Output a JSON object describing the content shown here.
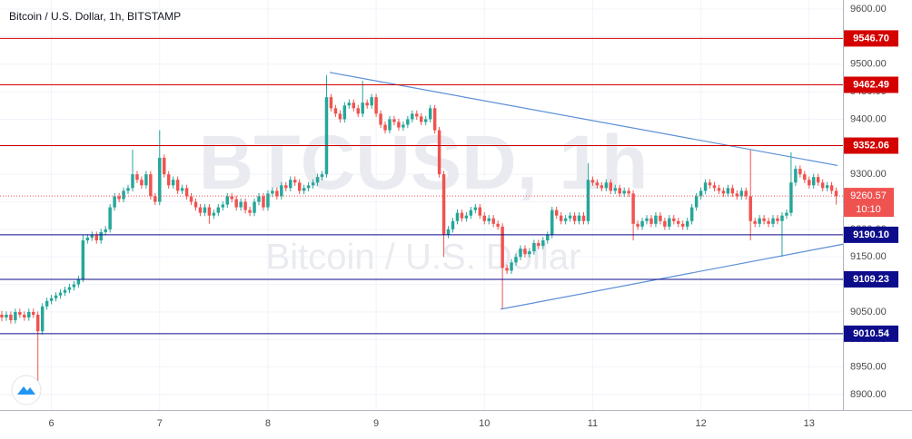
{
  "chart_data": {
    "type": "candlestick",
    "title": "Bitcoin / U.S. Dollar, 1h, BITSTAMP",
    "watermark": "BTCUSD, 1h",
    "watermark_subtitle": "Bitcoin / U.S. Dollar",
    "countdown": "10:10",
    "up_color": "#26a69a",
    "down_color": "#ef5350",
    "grid": true,
    "xlim": [
      -0.4,
      186.5
    ],
    "ylim": [
      8872,
      9616.5
    ],
    "xticks": [
      {
        "value": 11,
        "label": "6"
      },
      {
        "value": 35,
        "label": "7"
      },
      {
        "value": 59,
        "label": "8"
      },
      {
        "value": 83,
        "label": "9"
      },
      {
        "value": 107,
        "label": "10"
      },
      {
        "value": 131,
        "label": "11"
      },
      {
        "value": 155,
        "label": "12"
      },
      {
        "value": 179,
        "label": "13"
      }
    ],
    "yticks": [
      {
        "value": 8900,
        "label": "8900.00"
      },
      {
        "value": 8950,
        "label": "8950.00"
      },
      {
        "value": 9000,
        "label": "9000.00"
      },
      {
        "value": 9050,
        "label": "9050.00"
      },
      {
        "value": 9100,
        "label": "9100.00"
      },
      {
        "value": 9150,
        "label": "9150.00"
      },
      {
        "value": 9200,
        "label": "9200.00"
      },
      {
        "value": 9250,
        "label": "9250.00"
      },
      {
        "value": 9300,
        "label": "9300.00"
      },
      {
        "value": 9350,
        "label": "9350.00"
      },
      {
        "value": 9400,
        "label": "9400.00"
      },
      {
        "value": 9450,
        "label": "9450.00"
      },
      {
        "value": 9500,
        "label": "9500.00"
      },
      {
        "value": 9550,
        "label": "9550.00"
      },
      {
        "value": 9600,
        "label": "9600.00"
      }
    ],
    "levels": [
      {
        "value": 9546.7,
        "label": "9546.70",
        "color": "#d40000"
      },
      {
        "value": 9462.49,
        "label": "9462.49",
        "color": "#d40000"
      },
      {
        "value": 9352.06,
        "label": "9352.06",
        "color": "#d40000"
      },
      {
        "value": 9190.1,
        "label": "9190.10",
        "color": "#0d0d8c"
      },
      {
        "value": 9109.23,
        "label": "9109.23",
        "color": "#0d0d8c"
      },
      {
        "value": 9010.54,
        "label": "9010.54",
        "color": "#0d0d8c"
      }
    ],
    "trendlines": [
      {
        "color": "#5b8fd6",
        "points": [
          [
            72.7,
            9485
          ],
          [
            185.3,
            9316
          ]
        ]
      },
      {
        "color": "#5b8fd6",
        "points": [
          [
            110.6,
            9055
          ],
          [
            186.5,
            9173
          ]
        ]
      }
    ],
    "candles": [
      [
        9045,
        9052,
        9033,
        9040
      ],
      [
        9040,
        9051,
        9034,
        9045
      ],
      [
        9045,
        9051,
        9029,
        9035
      ],
      [
        9035,
        9056,
        9029,
        9050
      ],
      [
        9050,
        9056,
        9039,
        9045
      ],
      [
        9045,
        9051,
        9034,
        9040
      ],
      [
        9040,
        9056,
        9034,
        9050
      ],
      [
        9050,
        9056,
        9039,
        9045
      ],
      [
        9045,
        9051,
        8910,
        9015
      ],
      [
        9015,
        9066,
        9009,
        9060
      ],
      [
        9060,
        9076,
        9054,
        9070
      ],
      [
        9070,
        9081,
        9064,
        9075
      ],
      [
        9075,
        9086,
        9069,
        9080
      ],
      [
        9080,
        9091,
        9074,
        9085
      ],
      [
        9085,
        9096,
        9079,
        9090
      ],
      [
        9090,
        9101,
        9084,
        9095
      ],
      [
        9095,
        9106,
        9089,
        9100
      ],
      [
        9100,
        9116,
        9094,
        9110
      ],
      [
        9110,
        9190,
        9104,
        9180
      ],
      [
        9180,
        9191,
        9174,
        9185
      ],
      [
        9185,
        9196,
        9179,
        9190
      ],
      [
        9190,
        9196,
        9174,
        9180
      ],
      [
        9180,
        9201,
        9174,
        9195
      ],
      [
        9195,
        9206,
        9189,
        9200
      ],
      [
        9200,
        9246,
        9194,
        9240
      ],
      [
        9240,
        9266,
        9234,
        9260
      ],
      [
        9260,
        9266,
        9249,
        9255
      ],
      [
        9255,
        9276,
        9249,
        9270
      ],
      [
        9270,
        9281,
        9264,
        9275
      ],
      [
        9275,
        9345,
        9269,
        9300
      ],
      [
        9300,
        9306,
        9284,
        9290
      ],
      [
        9290,
        9296,
        9274,
        9280
      ],
      [
        9280,
        9306,
        9274,
        9300
      ],
      [
        9300,
        9306,
        9254,
        9260
      ],
      [
        9260,
        9266,
        9244,
        9250
      ],
      [
        9250,
        9380,
        9244,
        9330
      ],
      [
        9330,
        9336,
        9294,
        9300
      ],
      [
        9300,
        9306,
        9274,
        9280
      ],
      [
        9280,
        9296,
        9274,
        9290
      ],
      [
        9290,
        9296,
        9264,
        9270
      ],
      [
        9270,
        9281,
        9264,
        9275
      ],
      [
        9275,
        9281,
        9254,
        9260
      ],
      [
        9260,
        9266,
        9244,
        9250
      ],
      [
        9250,
        9256,
        9234,
        9240
      ],
      [
        9240,
        9246,
        9224,
        9230
      ],
      [
        9230,
        9246,
        9224,
        9240
      ],
      [
        9240,
        9246,
        9210,
        9225
      ],
      [
        9225,
        9236,
        9219,
        9230
      ],
      [
        9230,
        9246,
        9224,
        9240
      ],
      [
        9240,
        9251,
        9234,
        9245
      ],
      [
        9245,
        9266,
        9239,
        9260
      ],
      [
        9260,
        9266,
        9249,
        9255
      ],
      [
        9255,
        9261,
        9234,
        9240
      ],
      [
        9240,
        9256,
        9234,
        9250
      ],
      [
        9250,
        9256,
        9229,
        9235
      ],
      [
        9235,
        9241,
        9224,
        9230
      ],
      [
        9230,
        9256,
        9224,
        9250
      ],
      [
        9250,
        9266,
        9244,
        9260
      ],
      [
        9260,
        9266,
        9234,
        9240
      ],
      [
        9240,
        9271,
        9234,
        9265
      ],
      [
        9265,
        9276,
        9259,
        9270
      ],
      [
        9270,
        9276,
        9254,
        9260
      ],
      [
        9260,
        9286,
        9254,
        9280
      ],
      [
        9280,
        9286,
        9269,
        9275
      ],
      [
        9275,
        9296,
        9269,
        9290
      ],
      [
        9290,
        9296,
        9279,
        9285
      ],
      [
        9285,
        9291,
        9264,
        9270
      ],
      [
        9270,
        9281,
        9264,
        9275
      ],
      [
        9275,
        9286,
        9269,
        9280
      ],
      [
        9280,
        9291,
        9274,
        9285
      ],
      [
        9285,
        9301,
        9279,
        9295
      ],
      [
        9295,
        9306,
        9289,
        9300
      ],
      [
        9300,
        9480,
        9294,
        9440
      ],
      [
        9440,
        9446,
        9414,
        9420
      ],
      [
        9420,
        9426,
        9404,
        9410
      ],
      [
        9410,
        9416,
        9394,
        9400
      ],
      [
        9400,
        9431,
        9394,
        9425
      ],
      [
        9425,
        9436,
        9419,
        9430
      ],
      [
        9430,
        9436,
        9414,
        9420
      ],
      [
        9420,
        9426,
        9404,
        9410
      ],
      [
        9410,
        9470,
        9404,
        9430
      ],
      [
        9430,
        9436,
        9419,
        9425
      ],
      [
        9425,
        9446,
        9419,
        9440
      ],
      [
        9440,
        9446,
        9404,
        9410
      ],
      [
        9410,
        9416,
        9384,
        9390
      ],
      [
        9390,
        9396,
        9374,
        9380
      ],
      [
        9380,
        9406,
        9374,
        9400
      ],
      [
        9400,
        9406,
        9389,
        9395
      ],
      [
        9395,
        9401,
        9379,
        9385
      ],
      [
        9385,
        9396,
        9379,
        9390
      ],
      [
        9390,
        9406,
        9384,
        9400
      ],
      [
        9400,
        9416,
        9394,
        9410
      ],
      [
        9410,
        9416,
        9399,
        9405
      ],
      [
        9405,
        9411,
        9389,
        9395
      ],
      [
        9395,
        9406,
        9389,
        9400
      ],
      [
        9400,
        9426,
        9394,
        9420
      ],
      [
        9420,
        9426,
        9374,
        9380
      ],
      [
        9380,
        9386,
        9294,
        9300
      ],
      [
        9300,
        9306,
        9150,
        9190
      ],
      [
        9190,
        9206,
        9184,
        9200
      ],
      [
        9200,
        9221,
        9194,
        9215
      ],
      [
        9215,
        9236,
        9209,
        9230
      ],
      [
        9230,
        9236,
        9214,
        9220
      ],
      [
        9220,
        9231,
        9214,
        9225
      ],
      [
        9225,
        9241,
        9219,
        9235
      ],
      [
        9235,
        9246,
        9229,
        9240
      ],
      [
        9240,
        9246,
        9219,
        9225
      ],
      [
        9225,
        9231,
        9209,
        9215
      ],
      [
        9215,
        9226,
        9209,
        9220
      ],
      [
        9220,
        9226,
        9204,
        9210
      ],
      [
        9210,
        9216,
        9199,
        9205
      ],
      [
        9205,
        9211,
        9055,
        9130
      ],
      [
        9130,
        9136,
        9119,
        9125
      ],
      [
        9125,
        9146,
        9119,
        9140
      ],
      [
        9140,
        9156,
        9134,
        9150
      ],
      [
        9150,
        9171,
        9144,
        9165
      ],
      [
        9165,
        9171,
        9149,
        9155
      ],
      [
        9155,
        9166,
        9149,
        9160
      ],
      [
        9160,
        9181,
        9154,
        9175
      ],
      [
        9175,
        9181,
        9164,
        9170
      ],
      [
        9170,
        9186,
        9164,
        9180
      ],
      [
        9180,
        9196,
        9174,
        9190
      ],
      [
        9190,
        9241,
        9184,
        9235
      ],
      [
        9235,
        9241,
        9219,
        9225
      ],
      [
        9225,
        9231,
        9209,
        9215
      ],
      [
        9215,
        9226,
        9209,
        9220
      ],
      [
        9220,
        9231,
        9214,
        9225
      ],
      [
        9225,
        9231,
        9209,
        9215
      ],
      [
        9215,
        9231,
        9209,
        9225
      ],
      [
        9225,
        9231,
        9209,
        9215
      ],
      [
        9215,
        9320,
        9209,
        9290
      ],
      [
        9290,
        9296,
        9279,
        9285
      ],
      [
        9285,
        9291,
        9274,
        9280
      ],
      [
        9280,
        9286,
        9269,
        9275
      ],
      [
        9275,
        9291,
        9269,
        9285
      ],
      [
        9285,
        9291,
        9264,
        9270
      ],
      [
        9270,
        9281,
        9264,
        9275
      ],
      [
        9275,
        9281,
        9259,
        9265
      ],
      [
        9265,
        9276,
        9259,
        9270
      ],
      [
        9270,
        9276,
        9259,
        9265
      ],
      [
        9265,
        9271,
        9180,
        9210
      ],
      [
        9210,
        9216,
        9199,
        9205
      ],
      [
        9205,
        9221,
        9199,
        9215
      ],
      [
        9215,
        9226,
        9209,
        9220
      ],
      [
        9220,
        9226,
        9204,
        9210
      ],
      [
        9210,
        9231,
        9204,
        9225
      ],
      [
        9225,
        9231,
        9209,
        9215
      ],
      [
        9215,
        9221,
        9199,
        9205
      ],
      [
        9205,
        9226,
        9199,
        9220
      ],
      [
        9220,
        9226,
        9209,
        9215
      ],
      [
        9215,
        9221,
        9204,
        9210
      ],
      [
        9210,
        9216,
        9199,
        9205
      ],
      [
        9205,
        9221,
        9199,
        9215
      ],
      [
        9215,
        9246,
        9209,
        9240
      ],
      [
        9240,
        9266,
        9234,
        9260
      ],
      [
        9260,
        9276,
        9254,
        9270
      ],
      [
        9270,
        9291,
        9264,
        9285
      ],
      [
        9285,
        9291,
        9274,
        9280
      ],
      [
        9280,
        9286,
        9269,
        9275
      ],
      [
        9275,
        9281,
        9264,
        9270
      ],
      [
        9270,
        9276,
        9259,
        9265
      ],
      [
        9265,
        9281,
        9259,
        9275
      ],
      [
        9275,
        9281,
        9259,
        9265
      ],
      [
        9265,
        9271,
        9254,
        9260
      ],
      [
        9260,
        9276,
        9254,
        9270
      ],
      [
        9270,
        9276,
        9254,
        9260
      ],
      [
        9260,
        9345,
        9180,
        9215
      ],
      [
        9215,
        9221,
        9204,
        9210
      ],
      [
        9210,
        9226,
        9204,
        9220
      ],
      [
        9220,
        9226,
        9209,
        9215
      ],
      [
        9215,
        9221,
        9204,
        9210
      ],
      [
        9210,
        9226,
        9204,
        9220
      ],
      [
        9220,
        9226,
        9209,
        9215
      ],
      [
        9215,
        9231,
        9150,
        9225
      ],
      [
        9225,
        9236,
        9219,
        9230
      ],
      [
        9230,
        9340,
        9224,
        9285
      ],
      [
        9285,
        9316,
        9279,
        9310
      ],
      [
        9310,
        9316,
        9294,
        9300
      ],
      [
        9300,
        9306,
        9284,
        9290
      ],
      [
        9290,
        9296,
        9274,
        9280
      ],
      [
        9280,
        9301,
        9274,
        9295
      ],
      [
        9295,
        9301,
        9279,
        9285
      ],
      [
        9285,
        9291,
        9269,
        9275
      ],
      [
        9275,
        9286,
        9269,
        9280
      ],
      [
        9280,
        9286,
        9264,
        9270
      ],
      [
        9270,
        9276,
        9245,
        9260.57
      ]
    ]
  }
}
